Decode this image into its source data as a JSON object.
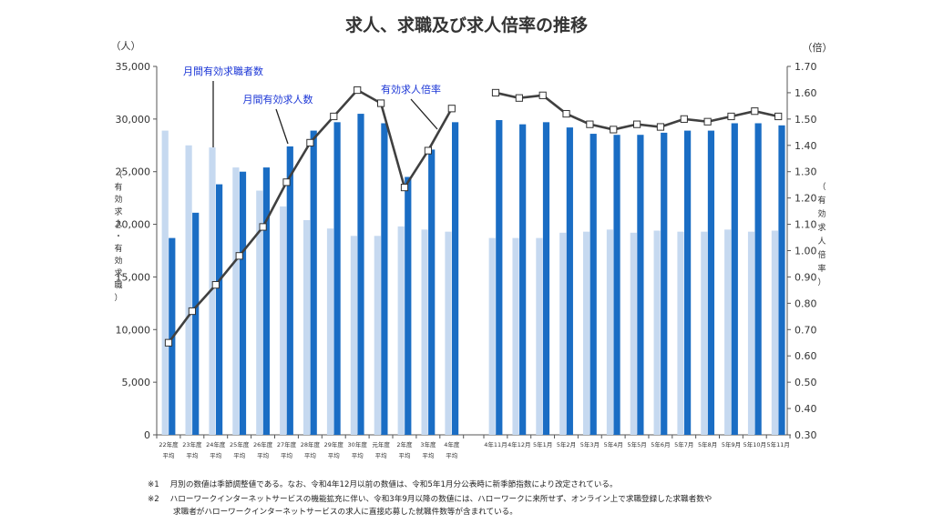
{
  "chart_data": {
    "type": "bar",
    "title": "求人、求職及び求人倍率の推移",
    "y_left_unit": "（人）",
    "y_right_unit": "（倍）",
    "y_left_label": "（有効求人・有効求職）",
    "y_right_label": "（有効求人倍率）",
    "y_left_range": [
      0,
      35000
    ],
    "y_left_ticks": [
      "0",
      "5,000",
      "10,000",
      "15,000",
      "20,000",
      "25,000",
      "30,000",
      "35,000"
    ],
    "y_right_range": [
      0.3,
      1.7
    ],
    "y_right_ticks": [
      "0.30",
      "0.40",
      "0.50",
      "0.60",
      "0.70",
      "0.80",
      "0.90",
      "1.00",
      "1.10",
      "1.20",
      "1.30",
      "1.40",
      "1.50",
      "1.60",
      "1.70"
    ],
    "grid": false,
    "annual_categories": [
      [
        "22年度",
        "平均"
      ],
      [
        "23年度",
        "平均"
      ],
      [
        "24年度",
        "平均"
      ],
      [
        "25年度",
        "平均"
      ],
      [
        "26年度",
        "平均"
      ],
      [
        "27年度",
        "平均"
      ],
      [
        "28年度",
        "平均"
      ],
      [
        "29年度",
        "平均"
      ],
      [
        "30年度",
        "平均"
      ],
      [
        "元年度",
        "平均"
      ],
      [
        "2年度",
        "平均"
      ],
      [
        "3年度",
        "平均"
      ],
      [
        "4年度",
        "平均"
      ]
    ],
    "monthly_categories": [
      "4年11月",
      "4年12月",
      "5年1月",
      "5年2月",
      "5年3月",
      "5年4月",
      "5年5月",
      "5年6月",
      "5年7月",
      "5年8月",
      "5年9月",
      "5年10月",
      "5年11月"
    ],
    "series": [
      {
        "name": "月間有効求職者数",
        "type": "bar",
        "color": "#c6d9f0",
        "annual": [
          28900,
          27500,
          27300,
          25400,
          23200,
          21700,
          20400,
          19600,
          18900,
          18900,
          19800,
          19500,
          19300
        ],
        "monthly": [
          18700,
          18700,
          18700,
          19200,
          19300,
          19500,
          19200,
          19400,
          19300,
          19300,
          19500,
          19300,
          19400
        ]
      },
      {
        "name": "月間有効求人数",
        "type": "bar",
        "color": "#1a6dc4",
        "annual": [
          18700,
          21100,
          23800,
          25000,
          25400,
          27400,
          28900,
          29700,
          30500,
          29600,
          24500,
          27100,
          29700
        ],
        "monthly": [
          29900,
          29500,
          29700,
          29200,
          28600,
          28500,
          28500,
          28700,
          28900,
          28900,
          29600,
          29600,
          29400
        ]
      },
      {
        "name": "有効求人倍率",
        "type": "line",
        "color": "#404040",
        "annual": [
          0.65,
          0.77,
          0.87,
          0.98,
          1.09,
          1.26,
          1.41,
          1.51,
          1.61,
          1.56,
          1.24,
          1.38,
          1.54
        ],
        "monthly": [
          1.6,
          1.58,
          1.59,
          1.52,
          1.48,
          1.46,
          1.48,
          1.47,
          1.5,
          1.49,
          1.51,
          1.53,
          1.51
        ]
      }
    ]
  },
  "notes": [
    {
      "mark": "※1",
      "text": "月別の数値は季節調整値である。なお、令和4年12月以前の数値は、令和5年1月分公表時に新季節指数により改定されている。"
    },
    {
      "mark": "※2",
      "text": "ハローワークインターネットサービスの機能拡充に伴い、令和3年9月以降の数値には、ハローワークに来所せず、オンライン上で求職登録した求職者数や"
    },
    {
      "mark": "",
      "text": "求職者がハローワークインターネットサービスの求人に直接応募した就職件数等が含まれている。"
    }
  ]
}
